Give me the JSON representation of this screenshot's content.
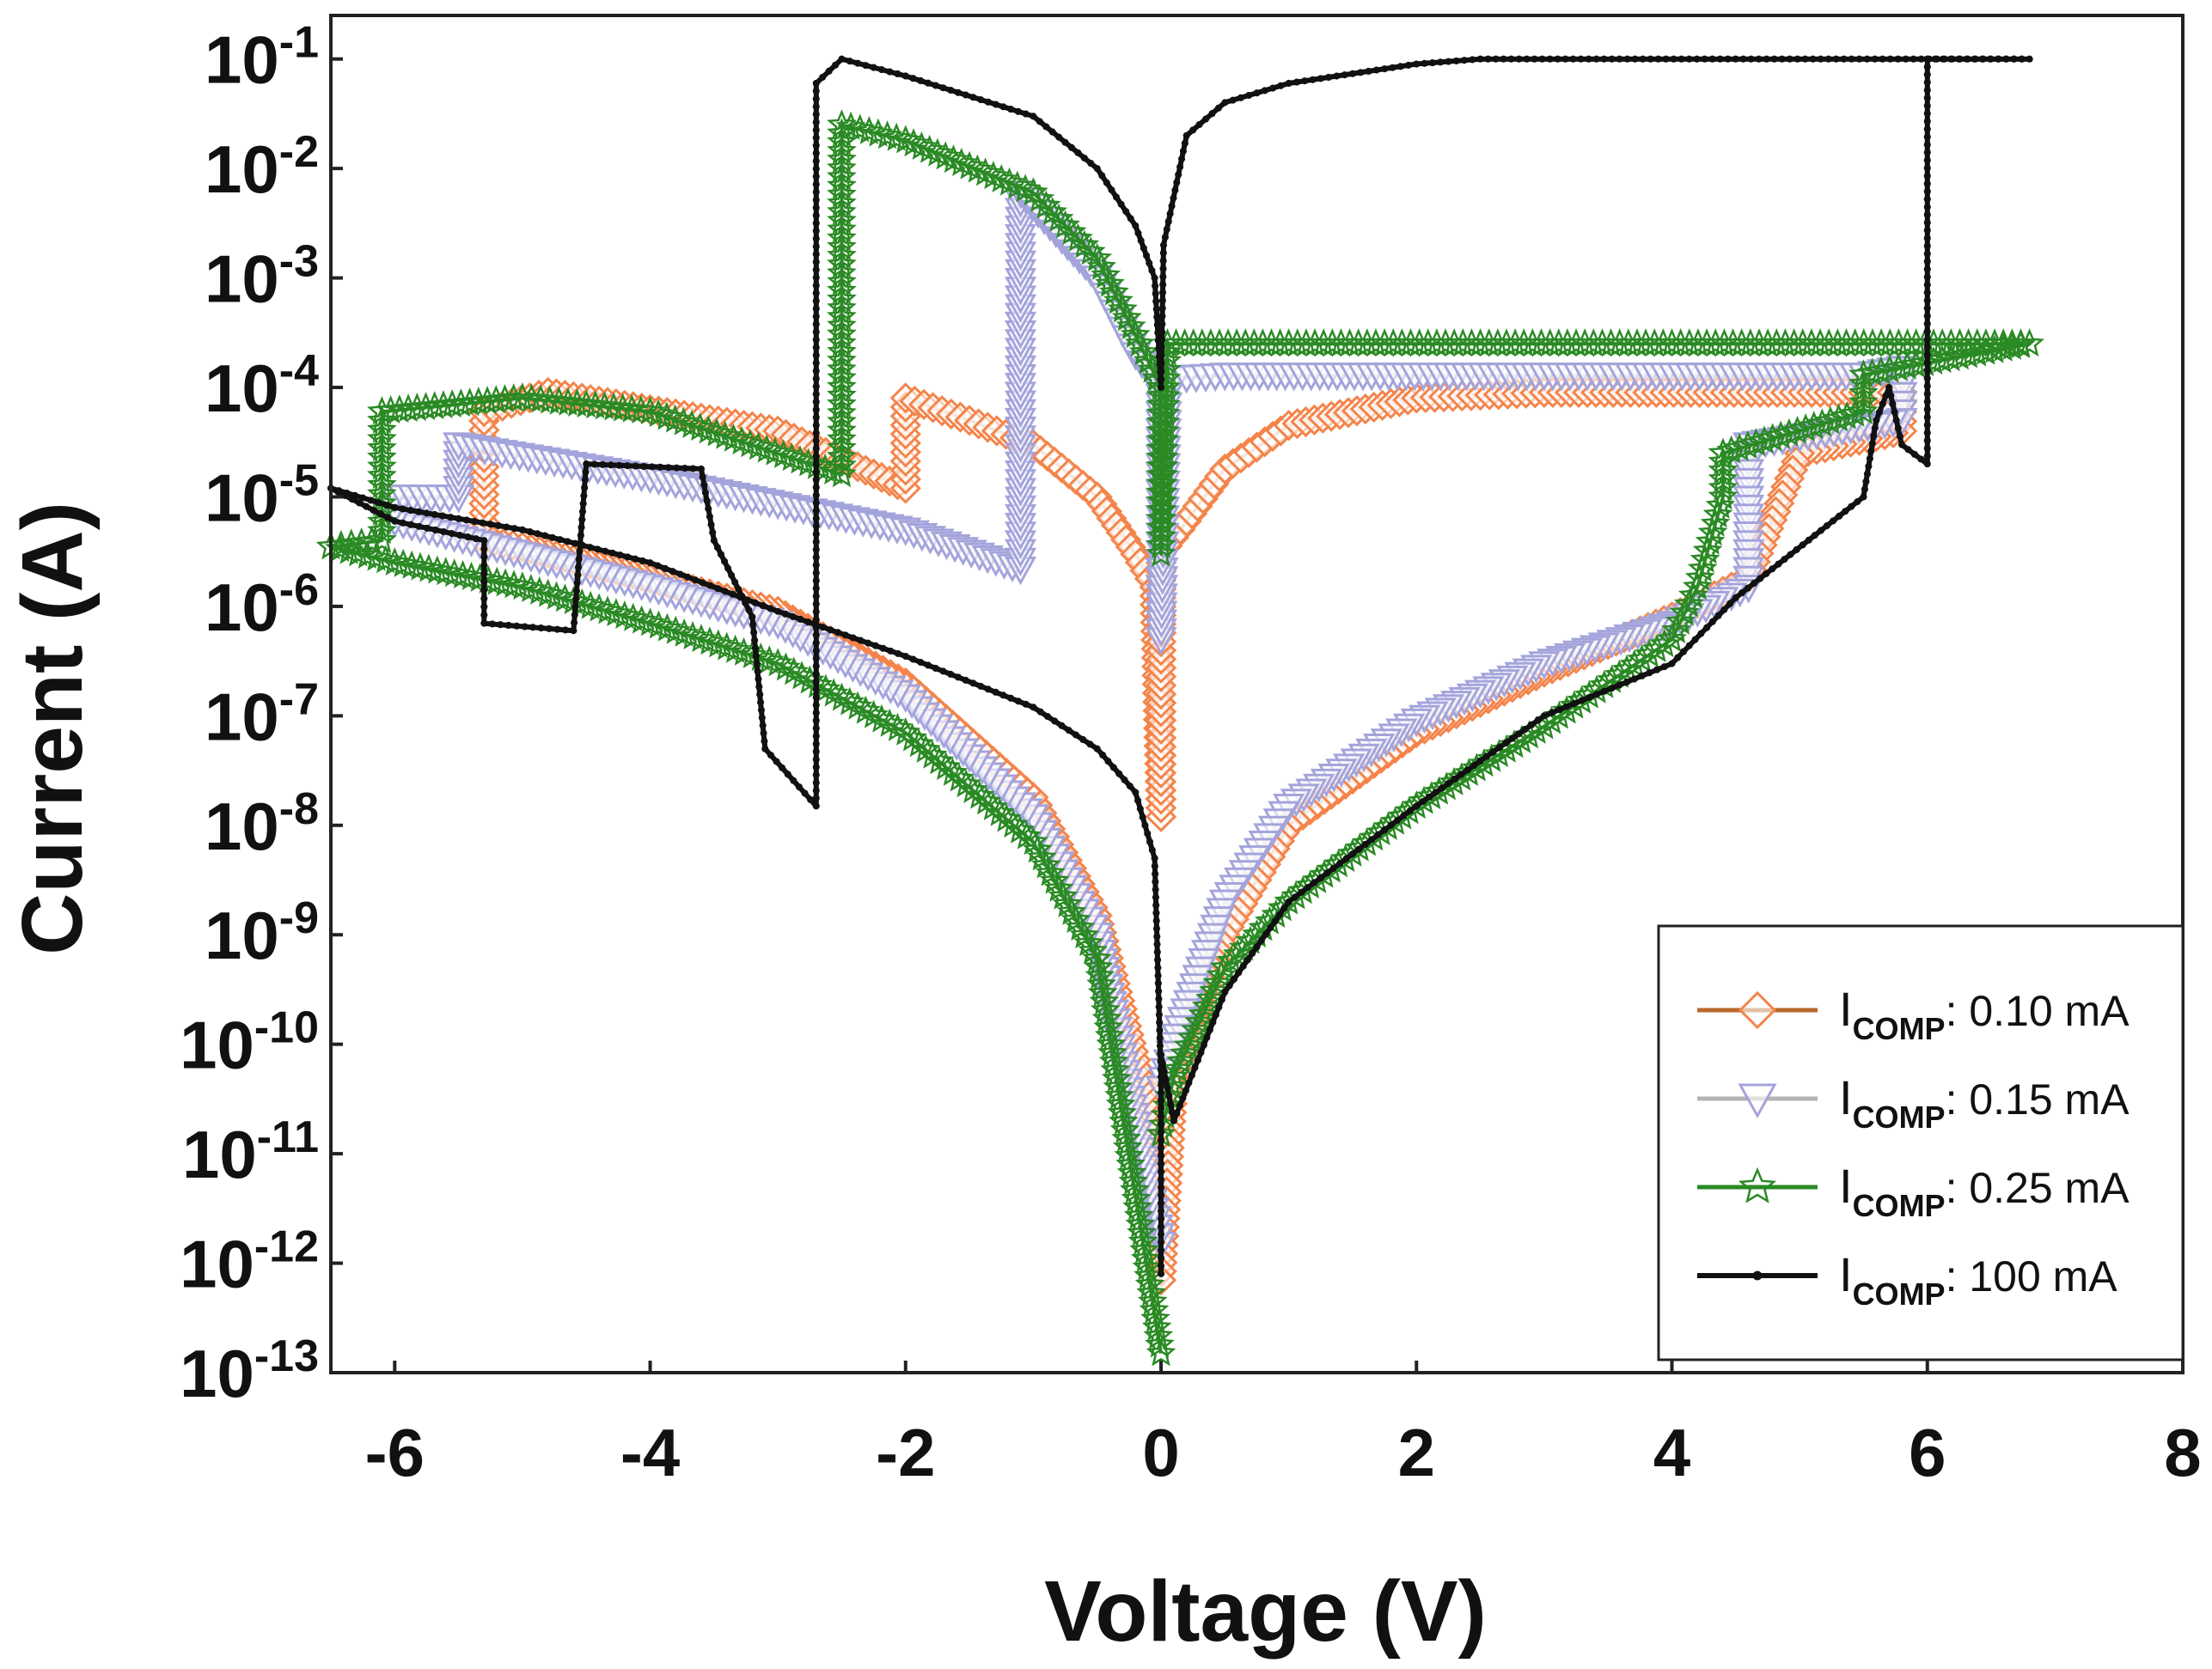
{
  "chart_data": {
    "type": "line",
    "title": "",
    "xlabel": "Voltage (V)",
    "ylabel": "Current (A)",
    "xscale": "linear",
    "yscale": "log",
    "xlim": [
      -6.5,
      8
    ],
    "ylim": [
      1e-13,
      0.25
    ],
    "x_ticks": [
      -6,
      -4,
      -2,
      0,
      2,
      4,
      6,
      8
    ],
    "x_tick_labels": [
      "-6",
      "-4",
      "-2",
      "0",
      "2",
      "4",
      "6",
      "8"
    ],
    "y_ticks": [
      -13,
      -12,
      -11,
      -10,
      -9,
      -8,
      -7,
      -6,
      -5,
      -4,
      -3,
      -2,
      -1
    ],
    "y_tick_base": "10",
    "y_tick_exponents": [
      "-13",
      "-12",
      "-11",
      "-10",
      "-9",
      "-8",
      "-7",
      "-6",
      "-5",
      "-4",
      "-3",
      "-2",
      "-1"
    ],
    "legend_position": "bottom-right",
    "series": [
      {
        "name": "I_COMP: 0.10 mA",
        "legend_main": "I",
        "legend_sub": "COMP",
        "legend_value": ": 0.10 mA",
        "color": "#f4844a",
        "line_color": "#b8682c",
        "marker": "diamond",
        "points": [
          [
            0,
            1e-11
          ],
          [
            -0.5,
            1.5e-09
          ],
          [
            -1,
            1.8e-08
          ],
          [
            -2,
            2e-07
          ],
          [
            -3,
            9e-07
          ],
          [
            -4,
            1.8e-06
          ],
          [
            -5,
            3.5e-06
          ],
          [
            -5.3,
            4e-06
          ],
          [
            -5.3,
            6e-05
          ],
          [
            -4.8,
            9e-05
          ],
          [
            -3,
            4e-05
          ],
          [
            -2,
            1.2e-05
          ],
          [
            -2,
            8e-05
          ],
          [
            -1.5,
            5e-05
          ],
          [
            -1,
            3e-05
          ],
          [
            -0.5,
            1e-05
          ],
          [
            -0.2,
            3e-06
          ],
          [
            -0.05,
            1.5e-06
          ],
          [
            0,
            1.2e-08
          ],
          [
            0,
            3e-06
          ],
          [
            0.2,
            6e-06
          ],
          [
            0.5,
            1.8e-05
          ],
          [
            1,
            4.5e-05
          ],
          [
            2,
            8e-05
          ],
          [
            3,
            9e-05
          ],
          [
            5.5,
            9e-05
          ],
          [
            5.8,
            9e-05
          ],
          [
            5.8,
            4e-05
          ],
          [
            5,
            2.5e-05
          ],
          [
            4.6,
            1.8e-06
          ],
          [
            4,
            8e-07
          ],
          [
            3,
            2.5e-07
          ],
          [
            2,
            7e-08
          ],
          [
            1,
            1e-08
          ],
          [
            0.5,
            1e-09
          ],
          [
            0.1,
            5e-11
          ],
          [
            0,
            7e-13
          ]
        ]
      },
      {
        "name": "I_COMP: 0.15 mA",
        "legend_main": "I",
        "legend_sub": "COMP",
        "legend_value": ": 0.15 mA",
        "color": "#a4a4dc",
        "line_color": "#b4b4b4",
        "marker": "triangle-down",
        "points": [
          [
            0,
            1.5e-12
          ],
          [
            -0.5,
            1e-09
          ],
          [
            -1,
            1.2e-08
          ],
          [
            -2,
            1.5e-07
          ],
          [
            -3,
            7e-07
          ],
          [
            -4,
            1.5e-06
          ],
          [
            -5,
            3e-06
          ],
          [
            -6,
            6e-06
          ],
          [
            -6,
            1e-05
          ],
          [
            -5.5,
            1e-05
          ],
          [
            -5.5,
            3e-05
          ],
          [
            -4,
            1.5e-05
          ],
          [
            -2,
            5e-06
          ],
          [
            -1.1,
            2.2e-06
          ],
          [
            -1.1,
            0.006
          ],
          [
            -0.5,
            0.001
          ],
          [
            -0.2,
            0.0002
          ],
          [
            0,
            0.0001
          ],
          [
            0,
            5e-07
          ],
          [
            0.05,
            0.00012
          ],
          [
            0.5,
            0.00013
          ],
          [
            3,
            0.00013
          ],
          [
            5.5,
            0.00013
          ],
          [
            5.8,
            0.00015
          ],
          [
            5.8,
            5e-05
          ],
          [
            4.6,
            3e-05
          ],
          [
            4.6,
            1.5e-06
          ],
          [
            4,
            7e-07
          ],
          [
            3,
            3e-07
          ],
          [
            2,
            9e-08
          ],
          [
            1,
            1.5e-08
          ],
          [
            0.5,
            2e-09
          ],
          [
            0.1,
            1e-10
          ],
          [
            0,
            4e-11
          ]
        ]
      },
      {
        "name": "I_COMP: 0.25 mA",
        "legend_main": "I",
        "legend_sub": "COMP",
        "legend_value": ": 0.25 mA",
        "color": "#2a8a24",
        "line_color": "#2a8a24",
        "marker": "star",
        "points": [
          [
            0,
            1.5e-13
          ],
          [
            -0.5,
            6e-10
          ],
          [
            -1,
            7e-09
          ],
          [
            -2,
            7e-08
          ],
          [
            -3,
            3e-07
          ],
          [
            -4,
            7e-07
          ],
          [
            -5,
            1.5e-06
          ],
          [
            -6,
            2.5e-06
          ],
          [
            -6.5,
            3.5e-06
          ],
          [
            -6.1,
            4e-06
          ],
          [
            -6.1,
            6e-05
          ],
          [
            -5,
            8e-05
          ],
          [
            -4,
            6e-05
          ],
          [
            -2.5,
            1.6e-05
          ],
          [
            -2.5,
            0.025
          ],
          [
            -2,
            0.018
          ],
          [
            -1,
            0.006
          ],
          [
            -0.5,
            0.0015
          ],
          [
            -0.2,
            0.0003
          ],
          [
            0,
            0.0001
          ],
          [
            0,
            3e-06
          ],
          [
            0.05,
            0.00025
          ],
          [
            1,
            0.00025
          ],
          [
            4,
            0.00025
          ],
          [
            6.8,
            0.00025
          ],
          [
            5.5,
            0.00013
          ],
          [
            5.5,
            6e-05
          ],
          [
            4.4,
            2.5e-05
          ],
          [
            4.4,
            1e-05
          ],
          [
            4.2,
            1.5e-06
          ],
          [
            4,
            5e-07
          ],
          [
            3,
            8e-08
          ],
          [
            2,
            1.5e-08
          ],
          [
            1,
            2e-09
          ],
          [
            0.5,
            5e-10
          ],
          [
            0.1,
            5e-11
          ],
          [
            0,
            1.5e-11
          ]
        ]
      },
      {
        "name": "I_COMP: 100 mA",
        "legend_main": "I",
        "legend_sub": "COMP",
        "legend_value": ": 100 mA",
        "color": "#111111",
        "line_color": "#111111",
        "marker": "dot",
        "points": [
          [
            0,
            8e-13
          ],
          [
            0,
            5e-11
          ],
          [
            -0.05,
            5e-09
          ],
          [
            -0.2,
            2e-08
          ],
          [
            -0.5,
            5e-08
          ],
          [
            -1,
            1.2e-07
          ],
          [
            -2,
            3.5e-07
          ],
          [
            -3,
            9e-07
          ],
          [
            -4,
            2.5e-06
          ],
          [
            -5,
            5e-06
          ],
          [
            -6,
            8e-06
          ],
          [
            -6.5,
            1.2e-05
          ],
          [
            -6,
            6e-06
          ],
          [
            -5.3,
            4e-06
          ],
          [
            -5.3,
            7e-07
          ],
          [
            -4.6,
            6e-07
          ],
          [
            -4.5,
            2e-05
          ],
          [
            -3.6,
            1.8e-05
          ],
          [
            -3.5,
            4e-06
          ],
          [
            -3.2,
            8e-07
          ],
          [
            -3.1,
            5e-08
          ],
          [
            -2.7,
            1.5e-08
          ],
          [
            -2.7,
            0.06
          ],
          [
            -2.5,
            0.1
          ],
          [
            -2,
            0.07
          ],
          [
            -1,
            0.03
          ],
          [
            -0.5,
            0.01
          ],
          [
            -0.2,
            0.003
          ],
          [
            -0.05,
            0.001
          ],
          [
            0,
            0.0001
          ],
          [
            0.02,
            0.002
          ],
          [
            0.2,
            0.02
          ],
          [
            0.5,
            0.04
          ],
          [
            1,
            0.06
          ],
          [
            2,
            0.09
          ],
          [
            2.5,
            0.1
          ],
          [
            6.8,
            0.1
          ],
          [
            6,
            0.1
          ],
          [
            6,
            2e-05
          ],
          [
            5.8,
            3e-05
          ],
          [
            5.7,
            0.0001
          ],
          [
            5.6,
            5e-05
          ],
          [
            5.5,
            1e-05
          ],
          [
            4.5,
            1.2e-06
          ],
          [
            4,
            3e-07
          ],
          [
            3,
            1e-07
          ],
          [
            2,
            1.5e-08
          ],
          [
            1,
            2e-09
          ],
          [
            0.5,
            3e-10
          ],
          [
            0.1,
            2e-11
          ],
          [
            0,
            8e-11
          ]
        ]
      }
    ]
  },
  "colors": {
    "axis": "#222222",
    "background": "#ffffff"
  }
}
